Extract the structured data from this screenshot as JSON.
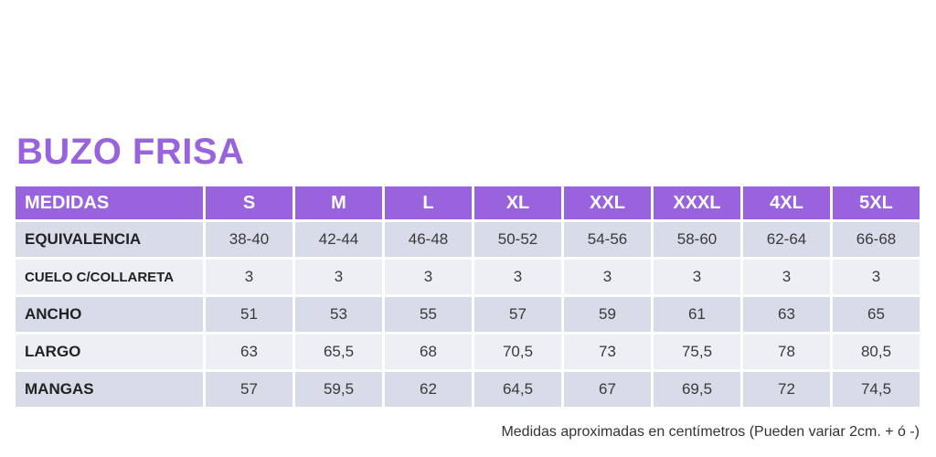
{
  "title": "BUZO FRISA",
  "table": {
    "header": [
      "MEDIDAS",
      "S",
      "M",
      "L",
      "XL",
      "XXL",
      "XXXL",
      "4XL",
      "5XL"
    ],
    "rows": [
      {
        "label": "EQUIVALENCIA",
        "values": [
          "38-40",
          "42-44",
          "46-48",
          "50-52",
          "54-56",
          "58-60",
          "62-64",
          "66-68"
        ]
      },
      {
        "label": "CUELO C/COLLARETA",
        "values": [
          "3",
          "3",
          "3",
          "3",
          "3",
          "3",
          "3",
          "3"
        ]
      },
      {
        "label": "ANCHO",
        "values": [
          "51",
          "53",
          "55",
          "57",
          "59",
          "61",
          "63",
          "65"
        ]
      },
      {
        "label": "LARGO",
        "values": [
          "63",
          "65,5",
          "68",
          "70,5",
          "73",
          "75,5",
          "78",
          "80,5"
        ]
      },
      {
        "label": "MANGAS",
        "values": [
          "57",
          "59,5",
          "62",
          "64,5",
          "67",
          "69,5",
          "72",
          "74,5"
        ]
      }
    ]
  },
  "footnote": "Medidas aproximadas en centímetros (Pueden variar 2cm. + ó -)",
  "colors": {
    "accent": "#9a63de",
    "row_dark": "#d8dbe8",
    "row_light": "#edeff4"
  }
}
